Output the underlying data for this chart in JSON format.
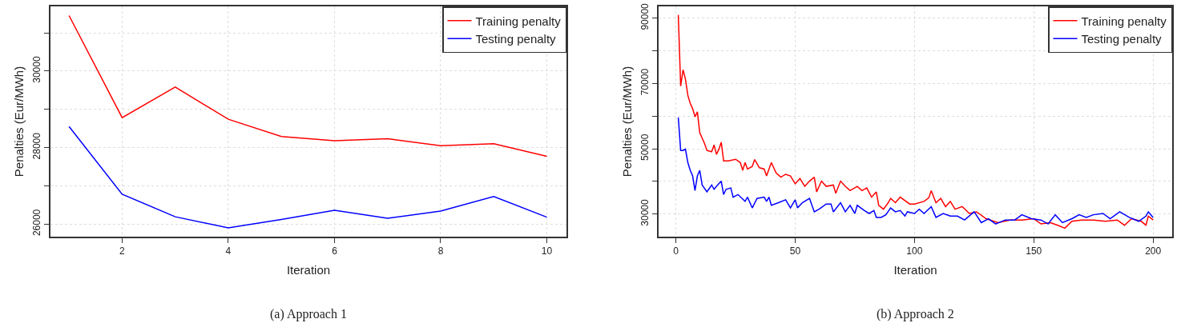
{
  "chart_data": [
    {
      "type": "line",
      "title": "(a) Approach 1",
      "xlabel": "Iteration",
      "ylabel": "Penalties (Eur/MWh)",
      "xlim": [
        0.65,
        10.37
      ],
      "xticks": [
        2,
        4,
        6,
        8,
        10
      ],
      "ylim": [
        25670,
        31690
      ],
      "yticks": [
        26000,
        {
          "value": 27000,
          "label": null
        },
        28000,
        {
          "value": 29000,
          "label": null
        },
        30000,
        {
          "value": 31000,
          "label": null
        }
      ],
      "grid": true,
      "legend": "top right",
      "line_style": "solid",
      "x": [
        1,
        2,
        3,
        4,
        5,
        6,
        7,
        8,
        9,
        10
      ],
      "series": [
        {
          "name": "Training penalty",
          "color": "#ff0000",
          "values": [
            31450,
            28780,
            29580,
            28740,
            28290,
            28180,
            28230,
            28050,
            28100,
            27770
          ]
        },
        {
          "name": "Testing penalty",
          "color": "#0000ff",
          "values": [
            28550,
            26780,
            26190,
            25900,
            26120,
            26360,
            26150,
            26340,
            26720,
            26180
          ]
        }
      ]
    },
    {
      "type": "line",
      "title": "(b) Approach 2",
      "xlabel": "Iteration",
      "ylabel": "Penalties (Eur/MWh)",
      "xlim": [
        -7.25,
        208
      ],
      "xticks": [
        0,
        50,
        100,
        150,
        200
      ],
      "ylim": [
        23100,
        93600
      ],
      "yticks": [
        30000,
        {
          "value": 40000,
          "label": null
        },
        50000,
        {
          "value": 60000,
          "label": null
        },
        70000,
        {
          "value": 80000,
          "label": null
        },
        90000
      ],
      "grid": true,
      "legend": "top right",
      "line_style": "solid",
      "series": [
        {
          "name": "Training penalty",
          "color": "#ff0000",
          "x": [
            1,
            2,
            3,
            4,
            5,
            6,
            7,
            8,
            9,
            10,
            12,
            13,
            15,
            16,
            17,
            18,
            19,
            20,
            22,
            25,
            27,
            28,
            29,
            30,
            32,
            33,
            35,
            37,
            38,
            40,
            42,
            44,
            46,
            48,
            50,
            52,
            54,
            56,
            58,
            59,
            61,
            63,
            66,
            67,
            69,
            71,
            73,
            76,
            78,
            80,
            82,
            84,
            85,
            87,
            89,
            90,
            92,
            94,
            98,
            100,
            104,
            106,
            107,
            109,
            111,
            113,
            115,
            117,
            120,
            123,
            126,
            130,
            135,
            140,
            145,
            150,
            153,
            157,
            160,
            163,
            166,
            170,
            175,
            180,
            185,
            188,
            191,
            195,
            197,
            198,
            200
          ],
          "values": [
            91000,
            69200,
            74200,
            71300,
            66400,
            63900,
            62300,
            59800,
            61300,
            54900,
            51600,
            49500,
            49100,
            51200,
            48300,
            49800,
            52000,
            46300,
            46300,
            46800,
            45800,
            43400,
            45800,
            43800,
            44600,
            46700,
            44200,
            43800,
            41700,
            45800,
            42600,
            41300,
            42200,
            41700,
            39300,
            40900,
            38500,
            40100,
            41300,
            36800,
            40100,
            38500,
            38900,
            36400,
            40100,
            38500,
            37200,
            38500,
            37200,
            38000,
            35200,
            36800,
            32700,
            31500,
            33500,
            34800,
            33500,
            35200,
            33100,
            33100,
            33900,
            35000,
            37200,
            33500,
            34800,
            32300,
            33900,
            31500,
            32300,
            30200,
            30700,
            28600,
            27400,
            28200,
            28200,
            28600,
            27000,
            27400,
            26600,
            25700,
            27800,
            28200,
            28200,
            27800,
            28200,
            26600,
            28600,
            27800,
            26600,
            29400,
            28200
          ]
        },
        {
          "name": "Testing penalty",
          "color": "#0000ff",
          "x": [
            1,
            2,
            3,
            4,
            5,
            6,
            7,
            8,
            9,
            10,
            11,
            13,
            15,
            16,
            17,
            19,
            20,
            21,
            23,
            24,
            26,
            29,
            30,
            32,
            34,
            37,
            38,
            39,
            40,
            43,
            46,
            48,
            50,
            51,
            53,
            56,
            58,
            60,
            63,
            65,
            66,
            69,
            71,
            73,
            75,
            76,
            79,
            81,
            83,
            84,
            86,
            88,
            90,
            92,
            94,
            96,
            97,
            100,
            102,
            104,
            107,
            109,
            112,
            115,
            118,
            121,
            125,
            128,
            131,
            134,
            138,
            142,
            145,
            149,
            153,
            156,
            159,
            162,
            166,
            169,
            172,
            175,
            179,
            182,
            186,
            190,
            194,
            197,
            198,
            200
          ],
          "values": [
            59600,
            49500,
            49500,
            49900,
            45800,
            43400,
            41700,
            37200,
            41700,
            43400,
            38900,
            36800,
            38900,
            37600,
            38500,
            40100,
            36000,
            37600,
            38000,
            35200,
            36000,
            33900,
            35200,
            31900,
            34800,
            35200,
            33900,
            35200,
            32700,
            33500,
            34400,
            31900,
            34400,
            31900,
            33500,
            34800,
            30700,
            31500,
            33100,
            33100,
            30700,
            33500,
            30700,
            32700,
            30200,
            32700,
            31100,
            30200,
            31100,
            29000,
            29000,
            29800,
            31900,
            30700,
            31100,
            29400,
            30700,
            30200,
            31500,
            30200,
            32300,
            29000,
            30200,
            29400,
            29400,
            28200,
            30700,
            27400,
            28600,
            27000,
            28200,
            28200,
            29800,
            28600,
            28200,
            27000,
            29800,
            27400,
            28600,
            29800,
            29000,
            29800,
            30200,
            28600,
            30700,
            29000,
            27800,
            29400,
            30700,
            29000
          ]
        }
      ]
    }
  ]
}
